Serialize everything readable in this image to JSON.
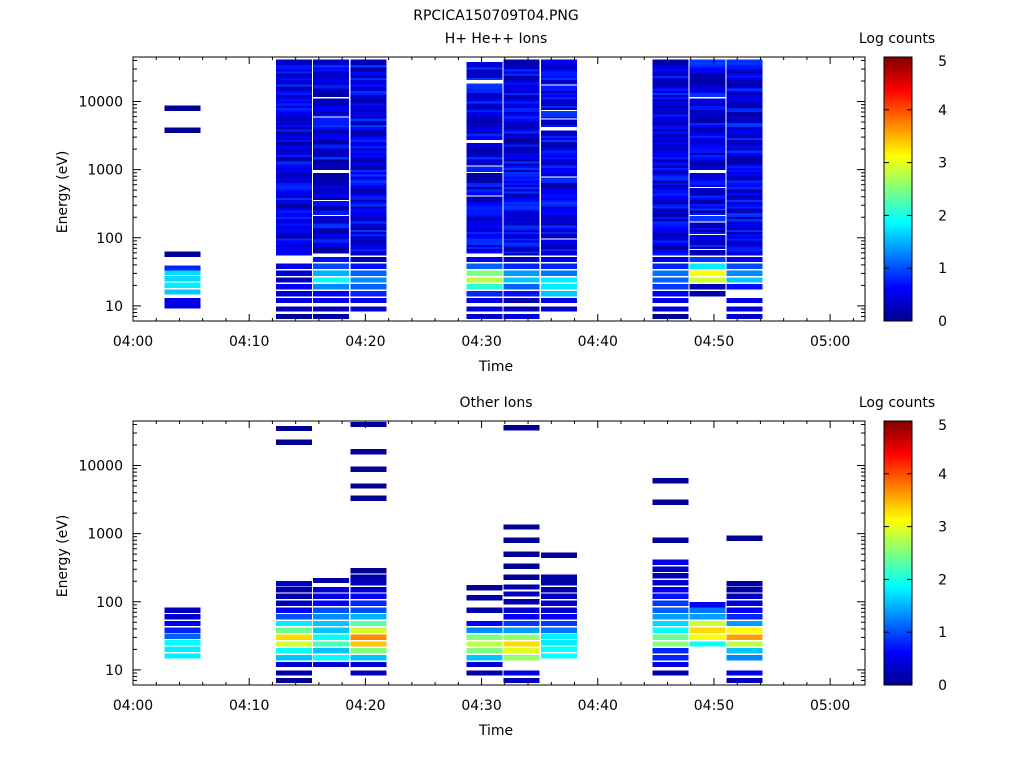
{
  "title": "RPCICA150709T04.PNG",
  "colorbar": {
    "label": "Log counts",
    "ticks": [
      "0",
      "1",
      "2",
      "3",
      "4",
      "5"
    ]
  },
  "x_ticks": [
    "04:00",
    "04:10",
    "04:20",
    "04:30",
    "04:40",
    "04:50",
    "05:00"
  ],
  "y_ticks": [
    "10",
    "100",
    "1000",
    "10000"
  ],
  "colors": {
    "scale": [
      "#00008f",
      "#0000ff",
      "#00ffff",
      "#ffff00",
      "#ff0000",
      "#800000"
    ]
  },
  "chart_data": [
    {
      "type": "heatmap",
      "title": "H+ He++ Ions",
      "xlabel": "Time",
      "ylabel": "Energy (eV)",
      "y_scale": "log",
      "xlim_minutes_after_0400": [
        0,
        63
      ],
      "ylim_eV": [
        6,
        45000
      ],
      "colorbar_range": [
        0,
        5
      ],
      "columns": [
        {
          "t_start_min": 2.7,
          "t_end_min": 5.8,
          "bins": [
            [
              10,
              0.5
            ],
            [
              12,
              0.5
            ],
            [
              16,
              1.6
            ],
            [
              20,
              1.8
            ],
            [
              25,
              1.7
            ],
            [
              31,
              1.7
            ],
            [
              36,
              0.8
            ],
            [
              57,
              0.1
            ],
            [
              3800,
              0.1
            ],
            [
              8000,
              0.1
            ]
          ]
        },
        {
          "t_start_min": 12.3,
          "t_end_min": 15.4,
          "profile": "dense",
          "low": [
            [
              7,
              0.1
            ],
            [
              9,
              0.3
            ],
            [
              12,
              0.5
            ],
            [
              15,
              0.4
            ],
            [
              19,
              0.6
            ],
            [
              24,
              0.3
            ],
            [
              30,
              0.4
            ],
            [
              38,
              0.5
            ]
          ]
        },
        {
          "t_start_min": 15.5,
          "t_end_min": 18.6,
          "profile": "striped",
          "low": [
            [
              7,
              0.2
            ],
            [
              9,
              0.3
            ],
            [
              12,
              0.5
            ],
            [
              15,
              0.6
            ],
            [
              19,
              1.3
            ],
            [
              24,
              1.9
            ],
            [
              30,
              1.5
            ],
            [
              38,
              1.0
            ],
            [
              48,
              0.7
            ]
          ]
        },
        {
          "t_start_min": 18.7,
          "t_end_min": 21.8,
          "profile": "dense",
          "low": [
            [
              9,
              0.4
            ],
            [
              12,
              0.5
            ],
            [
              15,
              0.8
            ],
            [
              19,
              1.1
            ],
            [
              24,
              1.3
            ],
            [
              30,
              1.1
            ],
            [
              38,
              0.7
            ],
            [
              48,
              0.3
            ]
          ]
        },
        {
          "t_start_min": 28.7,
          "t_end_min": 31.8,
          "profile": "striped",
          "low": [
            [
              7,
              0.4
            ],
            [
              9,
              0.5
            ],
            [
              12,
              0.5
            ],
            [
              15,
              0.8
            ],
            [
              19,
              2.1
            ],
            [
              24,
              2.8
            ],
            [
              30,
              2.5
            ],
            [
              38,
              1.1
            ],
            [
              48,
              0.5
            ]
          ]
        },
        {
          "t_start_min": 31.9,
          "t_end_min": 35.0,
          "profile": "dense",
          "low": [
            [
              7,
              0.5
            ],
            [
              9,
              0.3
            ],
            [
              12,
              0.2
            ],
            [
              15,
              0.7
            ],
            [
              19,
              1.1
            ],
            [
              24,
              1.6
            ],
            [
              30,
              1.4
            ],
            [
              38,
              0.8
            ],
            [
              48,
              0.4
            ]
          ]
        },
        {
          "t_start_min": 35.1,
          "t_end_min": 38.2,
          "profile": "striped",
          "low": [
            [
              9,
              0.4
            ],
            [
              12,
              0.5
            ],
            [
              15,
              1.6
            ],
            [
              19,
              1.8
            ],
            [
              24,
              1.8
            ],
            [
              30,
              1.2
            ],
            [
              38,
              0.8
            ],
            [
              48,
              0.5
            ]
          ]
        },
        {
          "t_start_min": 44.7,
          "t_end_min": 47.8,
          "profile": "dense",
          "low": [
            [
              7,
              0.1
            ],
            [
              9,
              0.4
            ],
            [
              12,
              0.5
            ],
            [
              15,
              0.6
            ],
            [
              19,
              0.9
            ],
            [
              24,
              1.1
            ],
            [
              30,
              1.2
            ],
            [
              38,
              0.8
            ],
            [
              48,
              0.5
            ]
          ]
        },
        {
          "t_start_min": 47.9,
          "t_end_min": 51.0,
          "profile": "striped",
          "low": [
            [
              15,
              0.2
            ],
            [
              19,
              0.3
            ],
            [
              24,
              2.9
            ],
            [
              30,
              3.1
            ],
            [
              38,
              1.8
            ],
            [
              48,
              0.9
            ],
            [
              60,
              0.5
            ]
          ]
        },
        {
          "t_start_min": 51.1,
          "t_end_min": 54.2,
          "profile": "dense",
          "low": [
            [
              7,
              0.4
            ],
            [
              9,
              0.5
            ],
            [
              12,
              0.5
            ],
            [
              19,
              0.7
            ],
            [
              24,
              1.6
            ],
            [
              30,
              1.3
            ],
            [
              38,
              1.0
            ],
            [
              48,
              0.6
            ]
          ]
        }
      ]
    },
    {
      "type": "heatmap",
      "title": "Other Ions",
      "xlabel": "Time",
      "ylabel": "Energy (eV)",
      "y_scale": "log",
      "xlim_minutes_after_0400": [
        0,
        63
      ],
      "ylim_eV": [
        6,
        45000
      ],
      "colorbar_range": [
        0,
        5
      ],
      "columns": [
        {
          "t_start_min": 2.7,
          "t_end_min": 5.8,
          "bins": [
            [
              16,
              1.8
            ],
            [
              20,
              1.8
            ],
            [
              25,
              1.9
            ],
            [
              31,
              1.1
            ],
            [
              38,
              0.8
            ],
            [
              48,
              0.6
            ],
            [
              60,
              0.4
            ],
            [
              75,
              0.3
            ]
          ]
        },
        {
          "t_start_min": 12.3,
          "t_end_min": 15.4,
          "bins": [
            [
              7,
              0.1
            ],
            [
              9,
              0.2
            ],
            [
              12,
              0.4
            ],
            [
              15,
              1.6
            ],
            [
              19,
              1.9
            ],
            [
              24,
              2.9
            ],
            [
              30,
              3.3
            ],
            [
              38,
              2.4
            ],
            [
              48,
              1.8
            ],
            [
              60,
              1.0
            ],
            [
              75,
              0.6
            ],
            [
              95,
              0.3
            ],
            [
              120,
              0.2
            ],
            [
              150,
              0.2
            ],
            [
              185,
              0.4
            ],
            [
              22000,
              0.1
            ],
            [
              35000,
              0.1
            ]
          ]
        },
        {
          "t_start_min": 15.5,
          "t_end_min": 18.6,
          "bins": [
            [
              12,
              0.4
            ],
            [
              15,
              1.9
            ],
            [
              19,
              1.6
            ],
            [
              24,
              2.2
            ],
            [
              30,
              1.9
            ],
            [
              38,
              1.6
            ],
            [
              48,
              1.6
            ],
            [
              60,
              1.3
            ],
            [
              75,
              1.0
            ],
            [
              95,
              0.6
            ],
            [
              120,
              0.5
            ],
            [
              150,
              0.4
            ],
            [
              205,
              0.2
            ]
          ]
        },
        {
          "t_start_min": 18.7,
          "t_end_min": 21.8,
          "bins": [
            [
              9,
              0.3
            ],
            [
              12,
              0.4
            ],
            [
              15,
              1.6
            ],
            [
              19,
              2.5
            ],
            [
              24,
              3.4
            ],
            [
              30,
              3.7
            ],
            [
              38,
              2.9
            ],
            [
              48,
              2.3
            ],
            [
              60,
              1.5
            ],
            [
              75,
              1.0
            ],
            [
              95,
              0.8
            ],
            [
              120,
              0.6
            ],
            [
              150,
              0.4
            ],
            [
              190,
              0.3
            ],
            [
              230,
              0.2
            ],
            [
              285,
              0.1
            ],
            [
              3300,
              0.1
            ],
            [
              5000,
              0.1
            ],
            [
              8800,
              0.1
            ],
            [
              16000,
              0.1
            ],
            [
              40000,
              0.1
            ]
          ]
        },
        {
          "t_start_min": 28.7,
          "t_end_min": 31.8,
          "bins": [
            [
              9,
              0.2
            ],
            [
              12,
              0.4
            ],
            [
              15,
              1.6
            ],
            [
              19,
              2.5
            ],
            [
              24,
              2.8
            ],
            [
              30,
              2.5
            ],
            [
              38,
              1.3
            ],
            [
              48,
              0.6
            ],
            [
              75,
              0.2
            ],
            [
              115,
              0.2
            ],
            [
              160,
              0.1
            ]
          ]
        },
        {
          "t_start_min": 31.9,
          "t_end_min": 35.0,
          "bins": [
            [
              7,
              0.3
            ],
            [
              9,
              0.5
            ],
            [
              15,
              2.6
            ],
            [
              19,
              3.0
            ],
            [
              24,
              3.3
            ],
            [
              30,
              2.6
            ],
            [
              38,
              1.4
            ],
            [
              48,
              0.9
            ],
            [
              60,
              0.6
            ],
            [
              75,
              0.4
            ],
            [
              100,
              0.2
            ],
            [
              130,
              0.3
            ],
            [
              165,
              0.2
            ],
            [
              230,
              0.1
            ],
            [
              330,
              0.1
            ],
            [
              500,
              0.1
            ],
            [
              800,
              0.1
            ],
            [
              1250,
              0.1
            ],
            [
              36000,
              0.1
            ]
          ]
        },
        {
          "t_start_min": 35.1,
          "t_end_min": 38.2,
          "bins": [
            [
              16,
              1.9
            ],
            [
              20,
              1.9
            ],
            [
              25,
              1.8
            ],
            [
              31,
              1.8
            ],
            [
              38,
              1.2
            ],
            [
              48,
              0.9
            ],
            [
              60,
              0.6
            ],
            [
              75,
              0.4
            ],
            [
              95,
              0.3
            ],
            [
              120,
              0.3
            ],
            [
              150,
              0.2
            ],
            [
              190,
              0.2
            ],
            [
              230,
              0.2
            ],
            [
              480,
              0.1
            ]
          ]
        },
        {
          "t_start_min": 44.7,
          "t_end_min": 47.8,
          "bins": [
            [
              9,
              0.2
            ],
            [
              12,
              0.5
            ],
            [
              15,
              0.8
            ],
            [
              19,
              0.8
            ],
            [
              24,
              2.5
            ],
            [
              30,
              2.4
            ],
            [
              38,
              1.9
            ],
            [
              48,
              1.7
            ],
            [
              60,
              1.4
            ],
            [
              75,
              1.1
            ],
            [
              95,
              0.9
            ],
            [
              120,
              0.7
            ],
            [
              150,
              0.6
            ],
            [
              190,
              0.4
            ],
            [
              240,
              0.3
            ],
            [
              300,
              0.3
            ],
            [
              380,
              0.5
            ],
            [
              800,
              0.1
            ],
            [
              2900,
              0.1
            ],
            [
              6000,
              0.1
            ]
          ]
        },
        {
          "t_start_min": 47.9,
          "t_end_min": 51.0,
          "bins": [
            [
              24,
              1.9
            ],
            [
              30,
              3.1
            ],
            [
              38,
              3.3
            ],
            [
              48,
              2.9
            ],
            [
              60,
              1.4
            ],
            [
              75,
              1.2
            ],
            [
              90,
              0.6
            ]
          ]
        },
        {
          "t_start_min": 51.1,
          "t_end_min": 54.2,
          "bins": [
            [
              7,
              0.3
            ],
            [
              9,
              0.5
            ],
            [
              15,
              1.3
            ],
            [
              19,
              1.6
            ],
            [
              24,
              2.8
            ],
            [
              30,
              3.6
            ],
            [
              38,
              3.1
            ],
            [
              48,
              1.4
            ],
            [
              60,
              0.8
            ],
            [
              75,
              0.6
            ],
            [
              95,
              0.4
            ],
            [
              120,
              0.3
            ],
            [
              150,
              0.2
            ],
            [
              185,
              0.2
            ],
            [
              860,
              0.1
            ]
          ]
        }
      ]
    }
  ]
}
